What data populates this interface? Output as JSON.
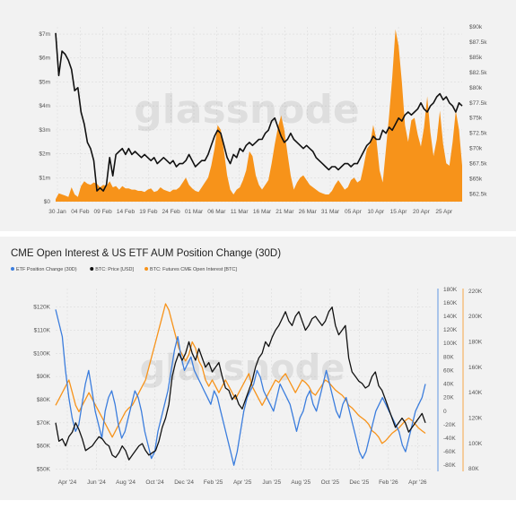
{
  "chart_data": [
    {
      "type": "area",
      "watermark": "glassnode",
      "x_labels": [
        "30 Jan",
        "04 Feb",
        "09 Feb",
        "14 Feb",
        "19 Feb",
        "24 Feb",
        "01 Mar",
        "06 Mar",
        "11 Mar",
        "16 Mar",
        "21 Mar",
        "26 Mar",
        "31 Mar",
        "05 Apr",
        "10 Apr",
        "15 Apr",
        "20 Apr",
        "25 Apr"
      ],
      "left_axis_labels": [
        "$0",
        "$1m",
        "$2m",
        "$3m",
        "$4m",
        "$5m",
        "$6m",
        "$7m"
      ],
      "right_axis_labels": [
        "$62.5k",
        "$65k",
        "$67.5k",
        "$70k",
        "$72.5k",
        "$75k",
        "$77.5k",
        "$80k",
        "$82.5k",
        "$85k",
        "$87.5k",
        "$90k"
      ],
      "left_range": [
        0,
        7.3
      ],
      "right_range": [
        61.25,
        90
      ],
      "grid": true,
      "series": [
        {
          "color": "#F7931A",
          "axis": "left",
          "values": [
            0.1,
            0.35,
            0.3,
            0.25,
            0.2,
            0.6,
            0.3,
            0.2,
            0.65,
            0.85,
            0.75,
            0.7,
            0.8,
            0.75,
            0.6,
            0.7,
            0.65,
            0.85,
            0.6,
            0.65,
            0.5,
            0.65,
            0.55,
            0.55,
            0.5,
            0.5,
            0.45,
            0.45,
            0.4,
            0.5,
            0.55,
            0.4,
            0.45,
            0.6,
            0.5,
            0.45,
            0.4,
            0.5,
            0.5,
            0.6,
            0.8,
            1.0,
            0.7,
            0.55,
            0.45,
            0.4,
            0.6,
            0.8,
            1.0,
            1.5,
            2.2,
            3.2,
            3.0,
            2.1,
            1.1,
            0.5,
            0.3,
            0.5,
            0.6,
            0.9,
            1.3,
            2.1,
            1.9,
            1.1,
            0.7,
            0.5,
            0.7,
            0.9,
            1.6,
            2.4,
            3.1,
            3.6,
            3.0,
            2.0,
            1.1,
            0.5,
            0.8,
            1.0,
            1.1,
            0.9,
            0.7,
            0.6,
            0.5,
            0.4,
            0.35,
            0.3,
            0.3,
            0.45,
            0.7,
            0.9,
            0.7,
            0.5,
            0.6,
            0.9,
            1.0,
            0.8,
            0.9,
            1.5,
            2.2,
            2.4,
            3.2,
            2.6,
            1.3,
            0.8,
            2.2,
            3.6,
            5.2,
            7.2,
            6.5,
            5.0,
            3.2,
            2.5,
            3.4,
            3.5,
            2.8,
            2.3,
            3.1,
            4.4,
            2.9,
            1.9,
            2.6,
            3.8,
            2.4,
            1.6,
            1.5,
            2.5,
            3.8,
            3.0,
            1.5
          ]
        },
        {
          "color": "#111111",
          "axis": "right",
          "values": [
            89.0,
            82.0,
            86.0,
            85.5,
            84.5,
            83.0,
            79.5,
            80.0,
            76.0,
            74.0,
            71.0,
            70.0,
            68.0,
            63.0,
            63.5,
            63.0,
            64.0,
            68.5,
            65.5,
            69.0,
            69.5,
            70.0,
            69.0,
            70.0,
            69.0,
            69.5,
            69.0,
            68.5,
            69.0,
            68.5,
            68.0,
            68.5,
            67.5,
            68.0,
            68.5,
            68.0,
            67.5,
            68.0,
            67.0,
            67.5,
            67.5,
            68.0,
            69.0,
            68.0,
            67.0,
            67.5,
            68.0,
            68.0,
            69.0,
            70.5,
            72.0,
            73.0,
            72.5,
            70.5,
            68.5,
            67.5,
            69.0,
            68.5,
            70.0,
            69.5,
            70.5,
            71.0,
            70.5,
            71.0,
            71.5,
            71.5,
            72.5,
            73.0,
            74.5,
            75.0,
            73.5,
            72.0,
            71.0,
            71.5,
            72.5,
            71.5,
            71.0,
            70.5,
            70.0,
            70.5,
            70.0,
            69.5,
            68.5,
            68.0,
            67.5,
            67.0,
            66.5,
            67.0,
            67.0,
            66.5,
            67.0,
            67.5,
            67.5,
            67.0,
            67.5,
            67.5,
            68.5,
            69.5,
            70.5,
            71.0,
            72.0,
            71.5,
            71.5,
            73.0,
            72.5,
            73.5,
            73.0,
            74.0,
            75.0,
            74.5,
            75.5,
            76.0,
            75.5,
            76.0,
            76.5,
            77.5,
            76.5,
            76.0,
            77.0,
            77.5,
            78.5,
            79.0,
            78.0,
            78.5,
            77.5,
            77.0,
            76.0,
            77.5,
            77.0
          ]
        }
      ]
    },
    {
      "type": "line",
      "title": "CME Open Interest & US ETF AUM Position Change (30D)",
      "watermark": "glassnode",
      "x_labels": [
        "Apr '24",
        "Jun '24",
        "Aug '24",
        "Oct '24",
        "Dec '24",
        "Feb '25",
        "Apr '25",
        "Jun '25",
        "Aug '25",
        "Oct '25",
        "Dec '25",
        "Feb '26",
        "Apr '26"
      ],
      "left_axis_labels": [
        "$50K",
        "$60K",
        "$70K",
        "$80K",
        "$90K",
        "$100K",
        "$110K",
        "$120K"
      ],
      "right_axis_etf_labels": [
        "-80K",
        "-60K",
        "-40K",
        "-20K",
        "0",
        "20K",
        "40K",
        "60K",
        "80K",
        "100K",
        "120K",
        "140K",
        "160K",
        "180K"
      ],
      "right_axis_cme_labels": [
        "80K",
        "100K",
        "120K",
        "140K",
        "160K",
        "180K",
        "200K",
        "220K"
      ],
      "left_range": [
        49,
        128
      ],
      "etf_range": [
        -89,
        181
      ],
      "cme_range": [
        78,
        222
      ],
      "grid": true,
      "legend_position": "top-left",
      "series": [
        {
          "name": "ETF Position Change (30D)",
          "color": "#3B7DDD",
          "axis": "etf",
          "values": [
            150,
            130,
            110,
            60,
            20,
            -10,
            -30,
            -20,
            10,
            40,
            60,
            30,
            0,
            -20,
            -40,
            0,
            20,
            30,
            10,
            -20,
            -40,
            -30,
            -10,
            10,
            30,
            20,
            0,
            -30,
            -50,
            -70,
            -60,
            -30,
            -10,
            10,
            30,
            60,
            90,
            110,
            80,
            60,
            70,
            80,
            60,
            50,
            40,
            30,
            20,
            10,
            30,
            20,
            0,
            -20,
            -40,
            -60,
            -80,
            -60,
            -30,
            0,
            20,
            30,
            40,
            60,
            50,
            30,
            20,
            10,
            0,
            20,
            40,
            30,
            20,
            10,
            -10,
            -30,
            -10,
            0,
            20,
            30,
            10,
            0,
            20,
            40,
            60,
            40,
            20,
            0,
            -10,
            10,
            20,
            0,
            -20,
            -40,
            -60,
            -70,
            -60,
            -40,
            -20,
            0,
            10,
            20,
            10,
            0,
            -10,
            -20,
            -30,
            -50,
            -60,
            -40,
            -20,
            0,
            10,
            20,
            40
          ]
        },
        {
          "name": "BTC: Price [USD]",
          "color": "#111111",
          "axis": "left",
          "values": [
            70,
            62,
            63,
            60,
            64,
            66,
            70,
            67,
            63,
            58,
            59,
            60,
            62,
            64,
            63,
            61,
            60,
            56,
            55,
            57,
            60,
            58,
            54,
            56,
            58,
            60,
            61,
            58,
            56,
            57,
            58,
            62,
            68,
            72,
            78,
            90,
            96,
            100,
            97,
            100,
            105,
            100,
            97,
            102,
            98,
            94,
            96,
            92,
            94,
            96,
            90,
            85,
            84,
            80,
            82,
            78,
            76,
            80,
            84,
            88,
            94,
            98,
            100,
            105,
            103,
            107,
            110,
            112,
            115,
            118,
            114,
            112,
            116,
            118,
            114,
            110,
            112,
            115,
            116,
            114,
            112,
            114,
            118,
            120,
            112,
            108,
            110,
            112,
            98,
            92,
            90,
            88,
            87,
            85,
            86,
            90,
            92,
            86,
            84,
            80,
            76,
            72,
            68,
            70,
            72,
            70,
            66,
            68,
            70,
            72,
            74,
            70
          ]
        },
        {
          "name": "BTC: Futures CME Open Interest [BTC]",
          "color": "#F7931A",
          "axis": "cme",
          "values": [
            130,
            135,
            140,
            145,
            150,
            140,
            130,
            125,
            130,
            135,
            140,
            135,
            130,
            125,
            120,
            115,
            110,
            105,
            110,
            115,
            120,
            125,
            128,
            130,
            135,
            140,
            145,
            150,
            160,
            170,
            180,
            190,
            200,
            210,
            205,
            195,
            185,
            175,
            170,
            165,
            170,
            180,
            175,
            165,
            160,
            150,
            145,
            150,
            145,
            140,
            145,
            150,
            145,
            140,
            135,
            140,
            145,
            150,
            155,
            145,
            140,
            135,
            130,
            135,
            140,
            145,
            150,
            148,
            152,
            155,
            150,
            145,
            140,
            145,
            150,
            148,
            145,
            140,
            138,
            142,
            146,
            150,
            148,
            145,
            142,
            140,
            138,
            135,
            130,
            128,
            125,
            122,
            120,
            118,
            115,
            110,
            108,
            105,
            100,
            102,
            105,
            108,
            110,
            112,
            115,
            118,
            120,
            118,
            115,
            112,
            110,
            108
          ]
        }
      ]
    }
  ]
}
